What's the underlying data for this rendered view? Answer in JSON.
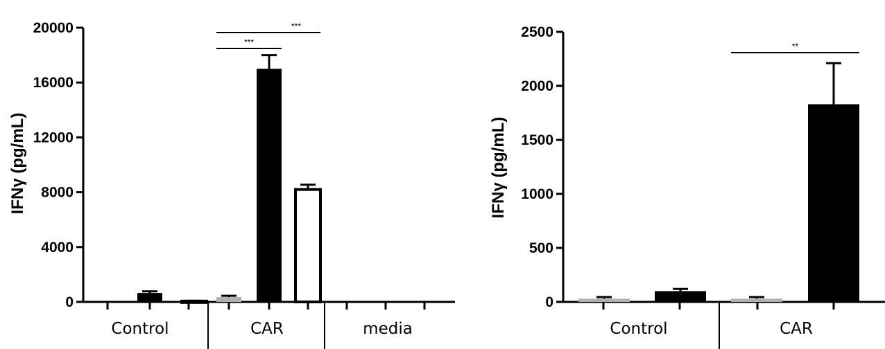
{
  "chart_data": [
    {
      "type": "bar",
      "ylabel": "IFNγ (pg/mL)",
      "ylim": [
        0,
        20000
      ],
      "yticks": [
        0,
        4000,
        8000,
        12000,
        16000,
        20000
      ],
      "groups": [
        "Control",
        "CAR",
        "media"
      ],
      "bars": [
        {
          "group": "Control",
          "value": 0,
          "error": 0,
          "color": "#b0b0b0"
        },
        {
          "group": "Control",
          "value": 650,
          "error": 120,
          "color": "#000000"
        },
        {
          "group": "Control",
          "value": 60,
          "error": 20,
          "color": "#ffffff"
        },
        {
          "group": "CAR",
          "value": 350,
          "error": 100,
          "color": "#b0b0b0"
        },
        {
          "group": "CAR",
          "value": 17000,
          "error": 1000,
          "color": "#000000"
        },
        {
          "group": "CAR",
          "value": 8200,
          "error": 350,
          "color": "#ffffff"
        },
        {
          "group": "media",
          "value": 0,
          "error": 0,
          "color": "#b0b0b0"
        },
        {
          "group": "media",
          "value": 0,
          "error": 0,
          "color": "#000000"
        },
        {
          "group": "media",
          "value": 0,
          "error": 0,
          "color": "#ffffff"
        }
      ],
      "significance": [
        {
          "from_bar": 3,
          "to_bar": 4,
          "label": "***"
        },
        {
          "from_bar": 3,
          "to_bar": 5,
          "label": "***"
        }
      ]
    },
    {
      "type": "bar",
      "ylabel": "IFNγ (pg/mL)",
      "ylim": [
        0,
        2500
      ],
      "yticks": [
        0,
        500,
        1000,
        1500,
        2000,
        2500
      ],
      "groups": [
        "Control",
        "CAR"
      ],
      "bars": [
        {
          "group": "Control",
          "value": 30,
          "error": 15,
          "color": "#b0b0b0"
        },
        {
          "group": "Control",
          "value": 100,
          "error": 20,
          "color": "#000000"
        },
        {
          "group": "CAR",
          "value": 30,
          "error": 15,
          "color": "#b0b0b0"
        },
        {
          "group": "CAR",
          "value": 1830,
          "error": 380,
          "color": "#000000"
        }
      ],
      "significance": [
        {
          "from_bar": 2,
          "to_bar": 3,
          "label": "**"
        }
      ]
    }
  ]
}
